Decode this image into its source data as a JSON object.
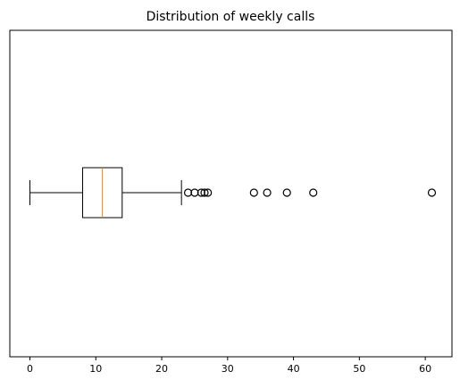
{
  "chart_data": {
    "type": "boxplot",
    "orientation": "horizontal",
    "title": "Distribution of weekly calls",
    "xlabel": "",
    "ylabel": "",
    "xlim": [
      -3.05,
      64.05
    ],
    "xticks": [
      0,
      10,
      20,
      30,
      40,
      50,
      60
    ],
    "grid": false,
    "box": {
      "whisker_low": 0,
      "q1": 8,
      "median": 11,
      "q3": 14,
      "whisker_high": 23
    },
    "outliers": [
      24,
      25,
      26,
      26.5,
      27,
      34,
      36,
      39,
      43,
      61
    ],
    "colors": {
      "box": "#000000",
      "median": "#ff7f0e",
      "outlier_edge": "#000000"
    }
  }
}
